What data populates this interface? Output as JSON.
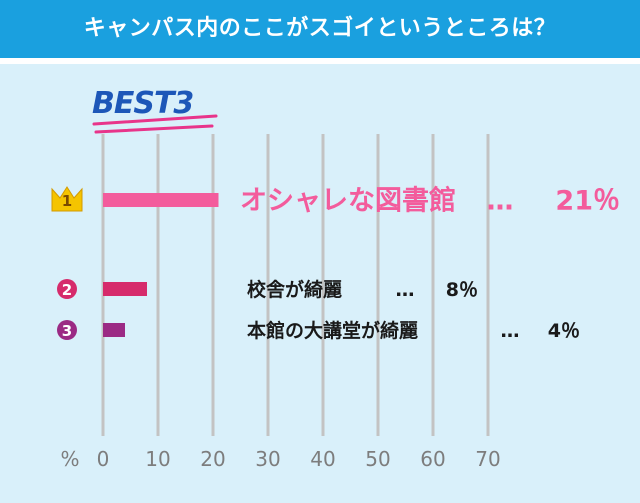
{
  "header": {
    "title": "キャンパス内のここがスゴイというところは？"
  },
  "badge": {
    "label": "BEST3"
  },
  "chart_data": {
    "type": "bar",
    "orientation": "horizontal",
    "xlim": [
      0,
      70
    ],
    "x_ticks": [
      "0",
      "10",
      "20",
      "30",
      "40",
      "50",
      "60",
      "70"
    ],
    "x_unit": "%",
    "grid": true,
    "categories": [
      "オシャレな図書館",
      "校舎が綺麗",
      "本館の大講堂が綺麗"
    ],
    "values": [
      21,
      8,
      4
    ],
    "value_labels": [
      "21％",
      "8％",
      "4％"
    ],
    "rank_labels": [
      "1",
      "2",
      "3"
    ],
    "separator": "…",
    "colors": [
      "#f35c9c",
      "#d62b6b",
      "#9b2a84"
    ],
    "rank_badge_colors": [
      "#f5c400",
      "#d62b6b",
      "#9b2a84"
    ]
  }
}
